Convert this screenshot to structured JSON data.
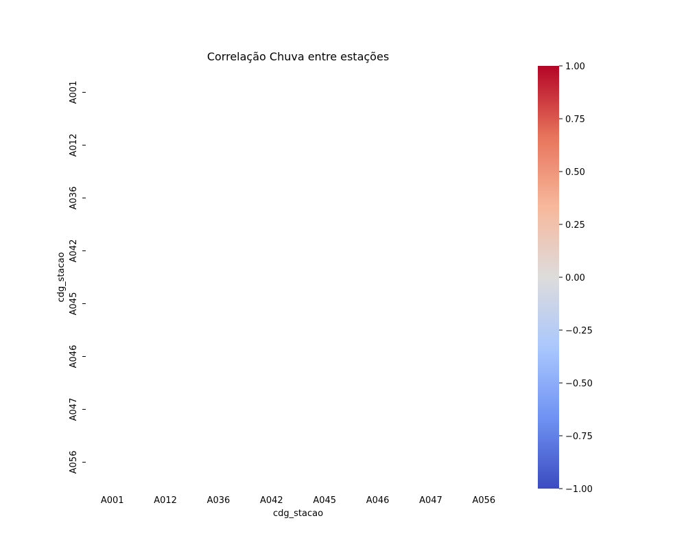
{
  "chart_data": {
    "type": "heatmap",
    "title": "Correlação Chuva entre estações",
    "xlabel": "cdg_stacao",
    "ylabel": "cdg_stacao",
    "x_categories": [
      "A001",
      "A012",
      "A036",
      "A042",
      "A045",
      "A046",
      "A047",
      "A056"
    ],
    "y_categories": [
      "A001",
      "A012",
      "A036",
      "A042",
      "A045",
      "A046",
      "A047",
      "A056"
    ],
    "values": [
      [
        null,
        null,
        null,
        null,
        null,
        null,
        null,
        null
      ],
      [
        null,
        null,
        null,
        null,
        null,
        null,
        null,
        null
      ],
      [
        null,
        null,
        null,
        null,
        null,
        null,
        null,
        null
      ],
      [
        null,
        null,
        null,
        null,
        null,
        null,
        null,
        null
      ],
      [
        null,
        null,
        null,
        null,
        null,
        null,
        null,
        null
      ],
      [
        null,
        null,
        null,
        null,
        null,
        null,
        null,
        null
      ],
      [
        null,
        null,
        null,
        null,
        null,
        null,
        null,
        null
      ],
      [
        null,
        null,
        null,
        null,
        null,
        null,
        null,
        null
      ]
    ],
    "colorbar": {
      "colormap": "coolwarm",
      "vmin": -1.0,
      "vmax": 1.0,
      "ticks": [
        "1.00",
        "0.75",
        "0.50",
        "0.25",
        "0.00",
        "−0.25",
        "−0.50",
        "−0.75",
        "−1.00"
      ],
      "colors": [
        "#3b4cc0",
        "#6f92f3",
        "#aac7fd",
        "#dddcdc",
        "#f7b89c",
        "#e7745b",
        "#b40426"
      ]
    },
    "grid": false,
    "legend": "none"
  }
}
